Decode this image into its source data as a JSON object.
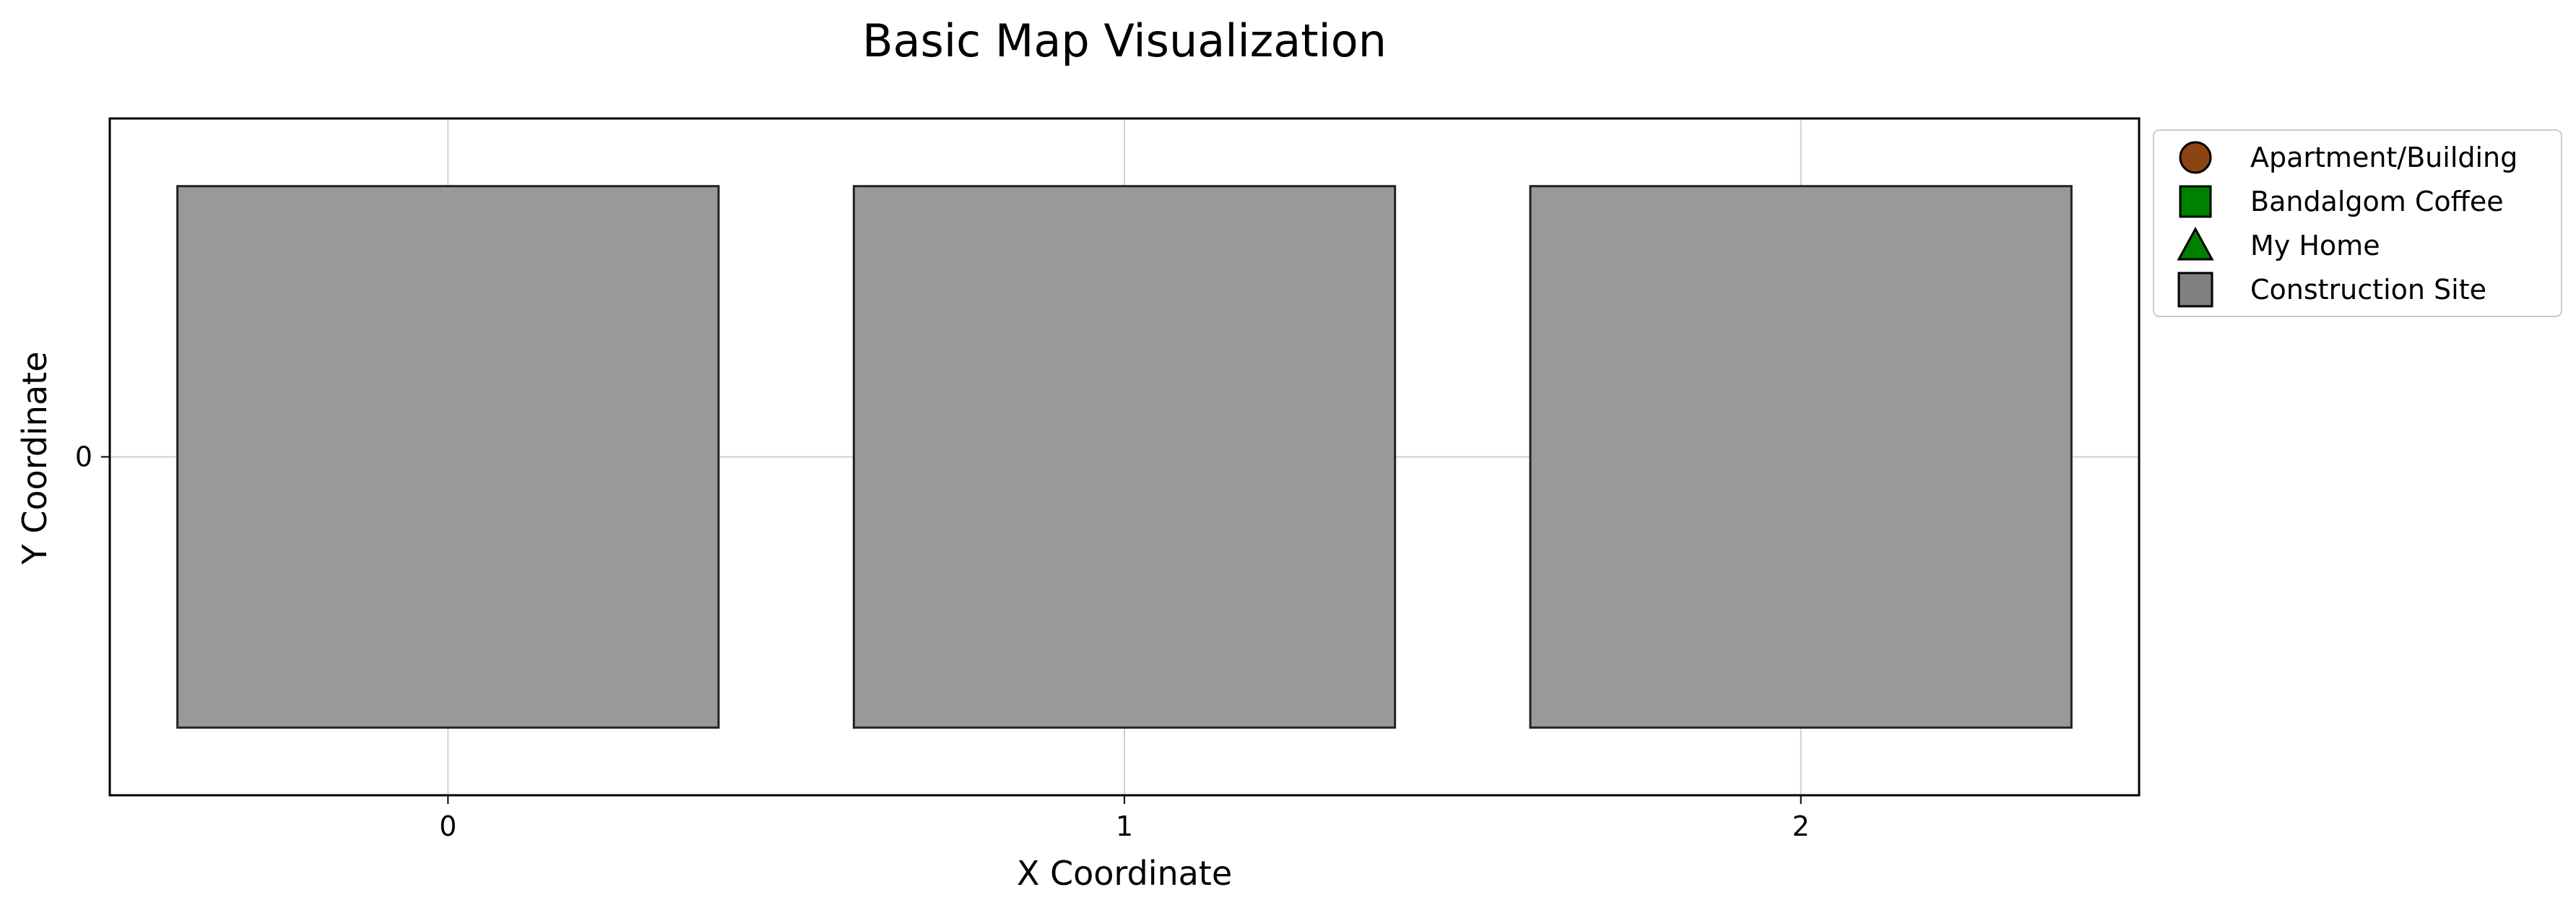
{
  "chart_data": {
    "type": "map",
    "title": "Basic Map Visualization",
    "xlabel": "X Coordinate",
    "ylabel": "Y Coordinate",
    "xlim": [
      -0.5,
      2.5
    ],
    "ylim": [
      -0.5,
      0.5
    ],
    "xticks": [
      0,
      1,
      2
    ],
    "yticks": [
      0
    ],
    "grid": true,
    "legend_position": "outside upper right",
    "legend": [
      {
        "label": "Apartment/Building",
        "marker": "circle",
        "color": "#8B4513"
      },
      {
        "label": "Bandalgom Coffee",
        "marker": "square",
        "color": "#008000"
      },
      {
        "label": "My Home",
        "marker": "triangle",
        "color": "#008000"
      },
      {
        "label": "Construction Site",
        "marker": "square",
        "color": "#808080"
      }
    ],
    "cells": [
      {
        "x": 0,
        "y": 0,
        "type": "Construction Site",
        "color": "#999999"
      },
      {
        "x": 1,
        "y": 0,
        "type": "Construction Site",
        "color": "#999999"
      },
      {
        "x": 2,
        "y": 0,
        "type": "Construction Site",
        "color": "#999999"
      }
    ]
  }
}
